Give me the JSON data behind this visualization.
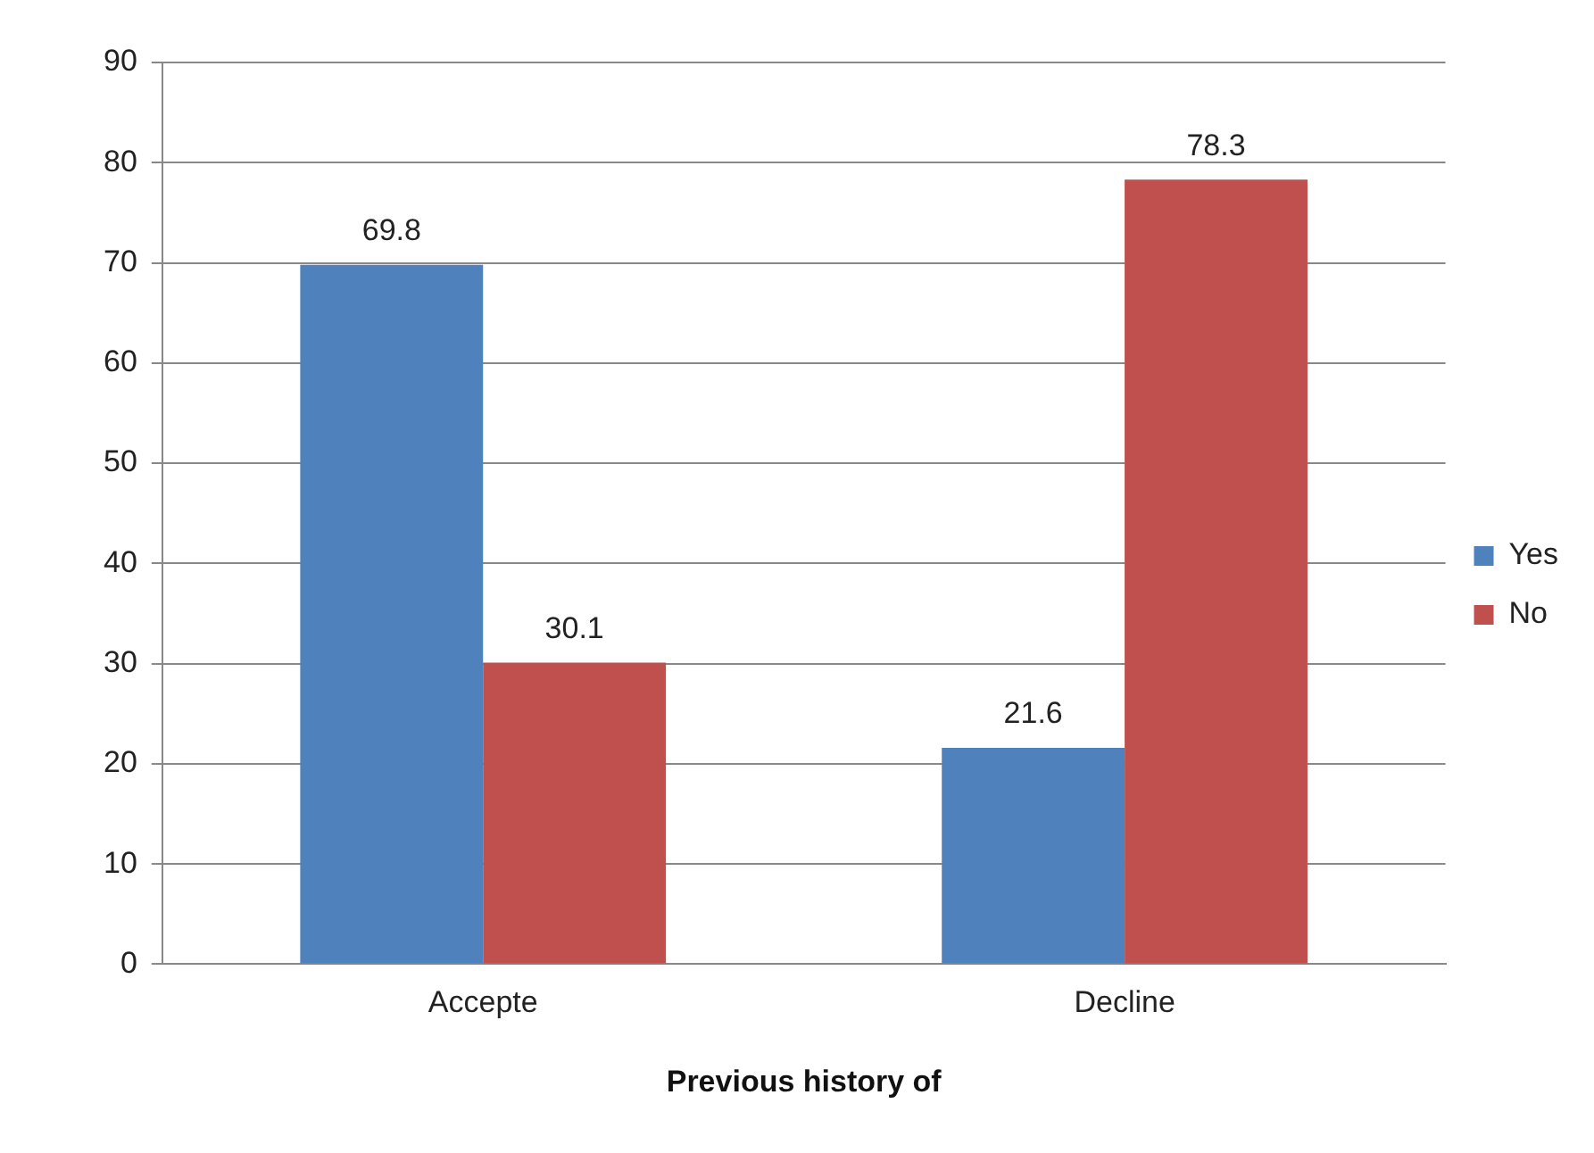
{
  "chart_data": {
    "type": "bar",
    "xlabel": "Previous history of",
    "categories": [
      "Accepte",
      "Decline"
    ],
    "series": [
      {
        "name": "Yes",
        "color": "#4f81bd",
        "values": [
          69.8,
          21.6
        ]
      },
      {
        "name": "No",
        "color": "#c0504d",
        "values": [
          30.1,
          78.3
        ]
      }
    ],
    "ylim": [
      0,
      90
    ],
    "yticks": [
      0,
      10,
      20,
      30,
      40,
      50,
      60,
      70,
      80,
      90
    ],
    "grid": "y",
    "legend": "right",
    "data_labels": true
  }
}
